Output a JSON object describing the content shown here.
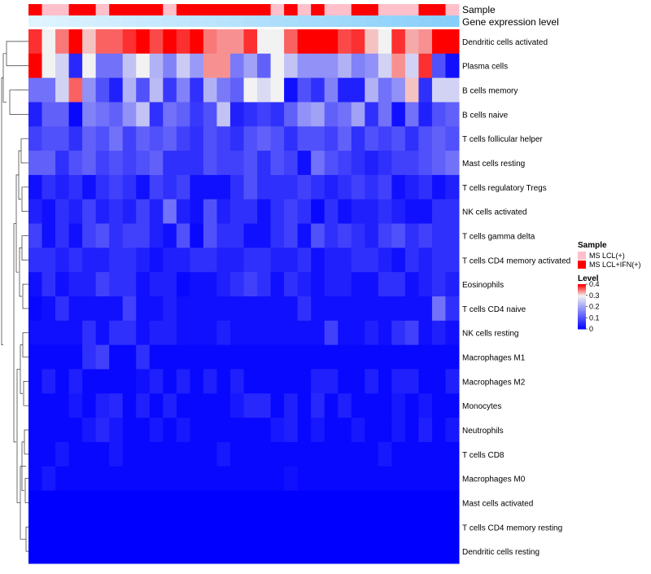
{
  "chart_data": {
    "type": "heatmap",
    "title": "",
    "annotation_tracks": [
      {
        "name": "Sample",
        "label": "Sample"
      },
      {
        "name": "Gene expression level",
        "label": "Gene expression level"
      }
    ],
    "sample_groups": [
      "MS LCL+IFN(+)",
      "MS LCL(+)",
      "MS LCL(+)",
      "MS LCL+IFN(+)",
      "MS LCL+IFN(+)",
      "MS LCL(+)",
      "MS LCL+IFN(+)",
      "MS LCL+IFN(+)",
      "MS LCL+IFN(+)",
      "MS LCL+IFN(+)",
      "MS LCL(+)",
      "MS LCL+IFN(+)",
      "MS LCL+IFN(+)",
      "MS LCL+IFN(+)",
      "MS LCL+IFN(+)",
      "MS LCL+IFN(+)",
      "MS LCL+IFN(+)",
      "MS LCL+IFN(+)",
      "MS LCL(+)",
      "MS LCL+IFN(+)",
      "MS LCL(+)",
      "MS LCL+IFN(+)",
      "MS LCL(+)",
      "MS LCL(+)",
      "MS LCL+IFN(+)",
      "MS LCL+IFN(+)",
      "MS LCL(+)",
      "MS LCL(+)",
      "MS LCL(+)",
      "MS LCL+IFN(+)",
      "MS LCL+IFN(+)",
      "MS LCL(+)"
    ],
    "expression_level": [
      0.0,
      0.0,
      0.0,
      0.0,
      0.0,
      0.0,
      0.0,
      0.0,
      0.0,
      0.0,
      0.0,
      0.0,
      0.0,
      0.0,
      0.0,
      0.0,
      0.0,
      0.0,
      0.0,
      0.0,
      0.0,
      0.0,
      0.0,
      0.0,
      0.0,
      0.0,
      0.0,
      0.0,
      0.0,
      0.0,
      0.0,
      0.0
    ],
    "rows": [
      "Dendritic cells activated",
      "Plasma cells",
      "B cells memory",
      "B cells naive",
      "T cells follicular helper",
      "Mast cells resting",
      "T cells regulatory  Tregs",
      "NK cells activated",
      "T cells gamma delta",
      "T cells CD4 memory activated",
      "Eosinophils",
      "T cells CD4 naive",
      "NK cells resting",
      "Macrophages M1",
      "Macrophages M2",
      "Monocytes",
      "Neutrophils",
      "T cells CD8",
      "Macrophages M0",
      "Mast cells activated",
      "T cells CD4 memory resting",
      "Dendritic cells resting"
    ],
    "values": [
      [
        0.38,
        0.3,
        0.35,
        0.4,
        0.32,
        0.36,
        0.36,
        0.38,
        0.4,
        0.37,
        0.4,
        0.38,
        0.4,
        0.35,
        0.34,
        0.34,
        0.38,
        0.3,
        0.3,
        0.36,
        0.4,
        0.4,
        0.4,
        0.37,
        0.38,
        0.32,
        0.3,
        0.38,
        0.33,
        0.34,
        0.4,
        0.4
      ],
      [
        0.4,
        0.3,
        0.26,
        0.05,
        0.3,
        0.14,
        0.14,
        0.24,
        0.3,
        0.22,
        0.16,
        0.25,
        0.19,
        0.34,
        0.34,
        0.15,
        0.2,
        0.12,
        0.3,
        0.24,
        0.18,
        0.18,
        0.18,
        0.22,
        0.16,
        0.18,
        0.26,
        0.34,
        0.26,
        0.38,
        0.1,
        0.02
      ],
      [
        0.14,
        0.14,
        0.26,
        0.36,
        0.18,
        0.1,
        0.04,
        0.22,
        0.1,
        0.23,
        0.07,
        0.16,
        0.06,
        0.22,
        0.15,
        0.12,
        0.3,
        0.27,
        0.3,
        0.02,
        0.1,
        0.06,
        0.16,
        0.04,
        0.04,
        0.22,
        0.14,
        0.18,
        0.32,
        0.06,
        0.26,
        0.26
      ],
      [
        0.04,
        0.12,
        0.12,
        0.01,
        0.16,
        0.14,
        0.12,
        0.18,
        0.24,
        0.06,
        0.14,
        0.12,
        0.07,
        0.1,
        0.24,
        0.04,
        0.06,
        0.08,
        0.06,
        0.12,
        0.18,
        0.2,
        0.12,
        0.14,
        0.2,
        0.06,
        0.14,
        0.02,
        0.14,
        0.04,
        0.1,
        0.12
      ],
      [
        0.08,
        0.1,
        0.1,
        0.06,
        0.12,
        0.1,
        0.14,
        0.08,
        0.12,
        0.1,
        0.12,
        0.08,
        0.06,
        0.1,
        0.08,
        0.06,
        0.1,
        0.12,
        0.1,
        0.06,
        0.1,
        0.1,
        0.08,
        0.12,
        0.06,
        0.1,
        0.08,
        0.1,
        0.06,
        0.1,
        0.12,
        0.1
      ],
      [
        0.12,
        0.12,
        0.06,
        0.1,
        0.12,
        0.08,
        0.1,
        0.08,
        0.1,
        0.12,
        0.06,
        0.06,
        0.06,
        0.1,
        0.08,
        0.08,
        0.1,
        0.06,
        0.1,
        0.08,
        0.02,
        0.14,
        0.1,
        0.08,
        0.06,
        0.04,
        0.06,
        0.08,
        0.08,
        0.1,
        0.12,
        0.14
      ],
      [
        0.02,
        0.06,
        0.04,
        0.06,
        0.02,
        0.06,
        0.08,
        0.06,
        0.02,
        0.08,
        0.06,
        0.08,
        0.02,
        0.02,
        0.02,
        0.06,
        0.1,
        0.06,
        0.06,
        0.06,
        0.08,
        0.06,
        0.04,
        0.06,
        0.08,
        0.06,
        0.08,
        0.02,
        0.04,
        0.06,
        0.02,
        0.04
      ],
      [
        0.04,
        0.02,
        0.06,
        0.04,
        0.08,
        0.04,
        0.06,
        0.04,
        0.08,
        0.04,
        0.14,
        0.04,
        0.02,
        0.1,
        0.04,
        0.06,
        0.06,
        0.02,
        0.06,
        0.08,
        0.06,
        0.01,
        0.06,
        0.02,
        0.04,
        0.04,
        0.06,
        0.04,
        0.02,
        0.02,
        0.06,
        0.06
      ],
      [
        0.08,
        0.02,
        0.06,
        0.02,
        0.08,
        0.1,
        0.06,
        0.08,
        0.08,
        0.04,
        0.02,
        0.1,
        0.01,
        0.1,
        0.06,
        0.06,
        0.02,
        0.02,
        0.06,
        0.08,
        0.02,
        0.1,
        0.06,
        0.08,
        0.06,
        0.04,
        0.08,
        0.1,
        0.06,
        0.08,
        0.06,
        0.06
      ],
      [
        0.06,
        0.06,
        0.04,
        0.06,
        0.04,
        0.04,
        0.06,
        0.06,
        0.04,
        0.02,
        0.04,
        0.04,
        0.06,
        0.06,
        0.04,
        0.04,
        0.06,
        0.06,
        0.04,
        0.04,
        0.06,
        0.02,
        0.04,
        0.04,
        0.06,
        0.06,
        0.04,
        0.02,
        0.06,
        0.04,
        0.06,
        0.06
      ],
      [
        0.02,
        0.06,
        0.02,
        0.04,
        0.04,
        0.08,
        0.06,
        0.06,
        0.02,
        0.04,
        0.04,
        0.01,
        0.02,
        0.02,
        0.04,
        0.06,
        0.08,
        0.06,
        0.02,
        0.06,
        0.04,
        0.02,
        0.04,
        0.04,
        0.02,
        0.02,
        0.06,
        0.06,
        0.02,
        0.04,
        0.06,
        0.04
      ],
      [
        0.01,
        0.02,
        0.06,
        0.02,
        0.02,
        0.02,
        0.02,
        0.08,
        0.02,
        0.02,
        0.04,
        0.02,
        0.02,
        0.02,
        0.02,
        0.02,
        0.02,
        0.02,
        0.02,
        0.02,
        0.06,
        0.02,
        0.02,
        0.02,
        0.02,
        0.02,
        0.02,
        0.02,
        0.02,
        0.02,
        0.14,
        0.06
      ],
      [
        0.02,
        0.02,
        0.02,
        0.02,
        0.06,
        0.02,
        0.06,
        0.06,
        0.02,
        0.04,
        0.04,
        0.02,
        0.02,
        0.02,
        0.04,
        0.02,
        0.02,
        0.02,
        0.02,
        0.02,
        0.02,
        0.02,
        0.08,
        0.02,
        0.02,
        0.04,
        0.02,
        0.06,
        0.08,
        0.02,
        0.04,
        0.02
      ],
      [
        0.01,
        0.01,
        0.01,
        0.01,
        0.06,
        0.08,
        0.01,
        0.01,
        0.06,
        0.01,
        0.01,
        0.01,
        0.01,
        0.01,
        0.01,
        0.01,
        0.01,
        0.01,
        0.01,
        0.01,
        0.01,
        0.01,
        0.01,
        0.01,
        0.01,
        0.01,
        0.01,
        0.01,
        0.01,
        0.01,
        0.01,
        0.01
      ],
      [
        0.01,
        0.04,
        0.01,
        0.04,
        0.01,
        0.01,
        0.01,
        0.01,
        0.02,
        0.04,
        0.01,
        0.04,
        0.01,
        0.04,
        0.01,
        0.04,
        0.01,
        0.01,
        0.01,
        0.01,
        0.01,
        0.04,
        0.04,
        0.01,
        0.01,
        0.04,
        0.01,
        0.04,
        0.04,
        0.01,
        0.01,
        0.04
      ],
      [
        0.01,
        0.01,
        0.01,
        0.03,
        0.01,
        0.04,
        0.05,
        0.01,
        0.04,
        0.01,
        0.04,
        0.01,
        0.01,
        0.01,
        0.01,
        0.03,
        0.05,
        0.05,
        0.01,
        0.04,
        0.01,
        0.05,
        0.01,
        0.04,
        0.01,
        0.01,
        0.01,
        0.03,
        0.01,
        0.03,
        0.01,
        0.01
      ],
      [
        0.01,
        0.01,
        0.01,
        0.01,
        0.03,
        0.05,
        0.03,
        0.01,
        0.01,
        0.03,
        0.01,
        0.03,
        0.01,
        0.01,
        0.01,
        0.01,
        0.01,
        0.01,
        0.03,
        0.04,
        0.01,
        0.03,
        0.01,
        0.01,
        0.03,
        0.01,
        0.01,
        0.03,
        0.01,
        0.04,
        0.01,
        0.03
      ],
      [
        0.01,
        0.01,
        0.03,
        0.01,
        0.01,
        0.01,
        0.03,
        0.01,
        0.01,
        0.01,
        0.01,
        0.01,
        0.01,
        0.01,
        0.03,
        0.01,
        0.01,
        0.01,
        0.01,
        0.01,
        0.01,
        0.01,
        0.01,
        0.01,
        0.01,
        0.01,
        0.03,
        0.01,
        0.01,
        0.01,
        0.01,
        0.01
      ],
      [
        0.01,
        0.03,
        0.01,
        0.01,
        0.01,
        0.01,
        0.01,
        0.01,
        0.01,
        0.01,
        0.01,
        0.01,
        0.01,
        0.01,
        0.01,
        0.01,
        0.01,
        0.01,
        0.01,
        0.02,
        0.01,
        0.01,
        0.01,
        0.01,
        0.01,
        0.01,
        0.01,
        0.01,
        0.01,
        0.01,
        0.01,
        0.01
      ],
      [
        0.0,
        0.0,
        0.0,
        0.0,
        0.0,
        0.0,
        0.0,
        0.0,
        0.0,
        0.0,
        0.0,
        0.0,
        0.0,
        0.0,
        0.0,
        0.0,
        0.0,
        0.0,
        0.0,
        0.0,
        0.0,
        0.0,
        0.0,
        0.0,
        0.0,
        0.0,
        0.0,
        0.0,
        0.0,
        0.0,
        0.0,
        0.0
      ],
      [
        0.0,
        0.0,
        0.0,
        0.0,
        0.0,
        0.0,
        0.0,
        0.0,
        0.0,
        0.0,
        0.0,
        0.0,
        0.0,
        0.0,
        0.0,
        0.0,
        0.0,
        0.0,
        0.0,
        0.0,
        0.0,
        0.0,
        0.0,
        0.0,
        0.0,
        0.0,
        0.0,
        0.0,
        0.0,
        0.0,
        0.0,
        0.0
      ],
      [
        0.0,
        0.0,
        0.0,
        0.0,
        0.0,
        0.0,
        0.0,
        0.0,
        0.0,
        0.0,
        0.0,
        0.0,
        0.0,
        0.0,
        0.0,
        0.0,
        0.0,
        0.0,
        0.0,
        0.0,
        0.0,
        0.0,
        0.0,
        0.0,
        0.0,
        0.0,
        0.0,
        0.0,
        0.0,
        0.0,
        0.0,
        0.0
      ]
    ],
    "color_scale": {
      "min": 0,
      "mid": 0.3,
      "max": 0.4,
      "low": "#0000ff",
      "midcolor": "#f2f2f2",
      "high": "#ff0000"
    },
    "legend": {
      "sample_title": "Sample",
      "sample_items": [
        {
          "label": "MS LCL(+)",
          "color": "#ffc0cb"
        },
        {
          "label": "MS LCL+IFN(+)",
          "color": "#ff0000"
        }
      ],
      "level_title": "Level",
      "level_ticks": [
        {
          "label": "0.4",
          "value": 0.4
        },
        {
          "label": "0.3",
          "value": 0.3
        },
        {
          "label": "0.2",
          "value": 0.2
        },
        {
          "label": "0.1",
          "value": 0.1
        },
        {
          "label": "0",
          "value": 0
        }
      ],
      "placement": "right"
    },
    "expression_track_color": "#87cefa",
    "dendrogram": "rows"
  }
}
